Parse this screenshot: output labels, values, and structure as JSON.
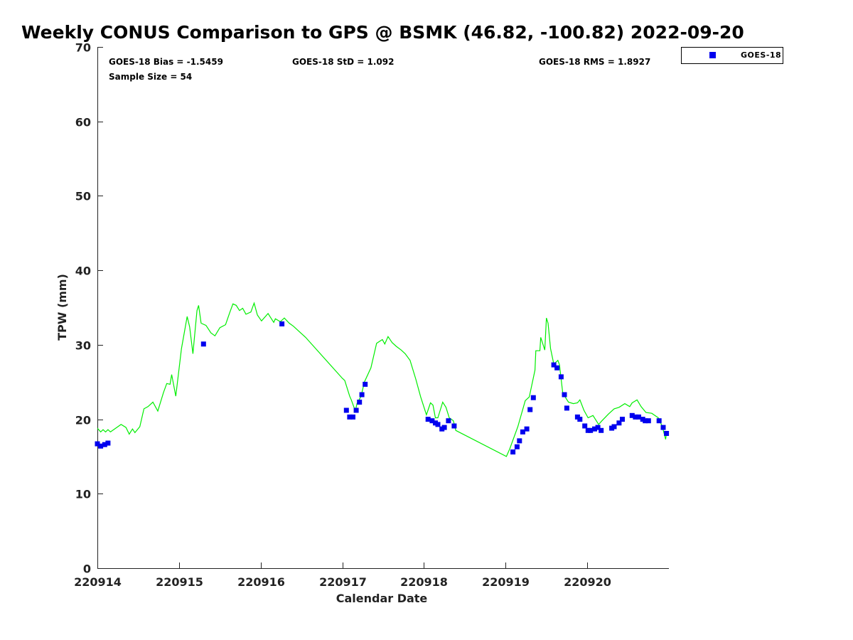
{
  "chart_data": {
    "type": "line",
    "title": "Weekly CONUS Comparison to GPS @ BSMK (46.82, -100.82) 2022-09-20",
    "xlabel": "Calendar Date",
    "ylabel": "TPW (mm)",
    "xlim": [
      14,
      21
    ],
    "ylim": [
      0,
      70
    ],
    "x_unit": "day of September 2022",
    "x_ticks": [
      14,
      15,
      16,
      17,
      18,
      19,
      20
    ],
    "x_tick_labels": [
      "220914",
      "220915",
      "220916",
      "220917",
      "220918",
      "220919",
      "220920"
    ],
    "y_ticks": [
      0,
      10,
      20,
      30,
      40,
      50,
      60,
      70
    ],
    "y_tick_labels": [
      "0",
      "10",
      "20",
      "30",
      "40",
      "50",
      "60",
      "70"
    ],
    "grid": false,
    "legend": {
      "placement": "outside-top-right",
      "entries": [
        "GOES-18"
      ]
    },
    "stats": {
      "bias": "GOES-18 Bias = -1.5459",
      "std": "GOES-18 StD = 1.092",
      "rms": "GOES-18 RMS = 1.8927",
      "sample": "Sample Size = 54"
    },
    "series": [
      {
        "name": "GPS",
        "kind": "line",
        "color": "#00ee00",
        "points": [
          [
            14.0,
            18.8
          ],
          [
            14.04,
            18.3
          ],
          [
            14.07,
            18.6
          ],
          [
            14.1,
            18.3
          ],
          [
            14.13,
            18.6
          ],
          [
            14.16,
            18.3
          ],
          [
            14.29,
            19.3
          ],
          [
            14.35,
            18.9
          ],
          [
            14.39,
            18.0
          ],
          [
            14.43,
            18.7
          ],
          [
            14.46,
            18.2
          ],
          [
            14.52,
            19.0
          ],
          [
            14.57,
            21.4
          ],
          [
            14.62,
            21.7
          ],
          [
            14.68,
            22.3
          ],
          [
            14.74,
            21.1
          ],
          [
            14.81,
            23.6
          ],
          [
            14.85,
            24.8
          ],
          [
            14.89,
            24.7
          ],
          [
            14.91,
            26.0
          ],
          [
            14.96,
            23.1
          ],
          [
            15.03,
            29.5
          ],
          [
            15.1,
            33.8
          ],
          [
            15.13,
            32.4
          ],
          [
            15.17,
            28.8
          ],
          [
            15.22,
            34.6
          ],
          [
            15.24,
            35.3
          ],
          [
            15.27,
            32.9
          ],
          [
            15.33,
            32.6
          ],
          [
            15.39,
            31.6
          ],
          [
            15.44,
            31.2
          ],
          [
            15.5,
            32.3
          ],
          [
            15.57,
            32.7
          ],
          [
            15.62,
            34.3
          ],
          [
            15.66,
            35.5
          ],
          [
            15.7,
            35.3
          ],
          [
            15.74,
            34.6
          ],
          [
            15.78,
            34.9
          ],
          [
            15.82,
            34.1
          ],
          [
            15.88,
            34.4
          ],
          [
            15.92,
            35.6
          ],
          [
            15.96,
            34.0
          ],
          [
            16.01,
            33.2
          ],
          [
            16.09,
            34.2
          ],
          [
            16.16,
            33.0
          ],
          [
            16.18,
            33.5
          ],
          [
            16.24,
            33.1
          ],
          [
            16.29,
            33.6
          ],
          [
            16.35,
            32.9
          ],
          [
            16.4,
            32.5
          ],
          [
            16.55,
            31.0
          ],
          [
            17.0,
            25.5
          ],
          [
            17.03,
            25.2
          ],
          [
            17.09,
            23.1
          ],
          [
            17.11,
            22.6
          ],
          [
            17.16,
            21.1
          ],
          [
            17.18,
            22.1
          ],
          [
            17.23,
            23.1
          ],
          [
            17.27,
            25.0
          ],
          [
            17.35,
            26.9
          ],
          [
            17.42,
            30.2
          ],
          [
            17.49,
            30.7
          ],
          [
            17.52,
            30.1
          ],
          [
            17.56,
            31.1
          ],
          [
            17.61,
            30.3
          ],
          [
            17.66,
            29.8
          ],
          [
            17.72,
            29.3
          ],
          [
            17.77,
            28.8
          ],
          [
            17.83,
            27.9
          ],
          [
            17.9,
            25.4
          ],
          [
            17.96,
            23.0
          ],
          [
            18.03,
            20.6
          ],
          [
            18.08,
            22.2
          ],
          [
            18.11,
            21.9
          ],
          [
            18.14,
            20.2
          ],
          [
            18.17,
            20.2
          ],
          [
            18.23,
            22.3
          ],
          [
            18.27,
            21.6
          ],
          [
            18.31,
            20.2
          ],
          [
            18.36,
            19.8
          ],
          [
            18.39,
            18.5
          ],
          [
            19.01,
            15.0
          ],
          [
            19.05,
            16.0
          ],
          [
            19.15,
            19.0
          ],
          [
            19.24,
            22.5
          ],
          [
            19.29,
            23.0
          ],
          [
            19.36,
            26.6
          ],
          [
            19.37,
            29.2
          ],
          [
            19.42,
            29.2
          ],
          [
            19.43,
            31.0
          ],
          [
            19.48,
            29.3
          ],
          [
            19.5,
            33.6
          ],
          [
            19.52,
            32.9
          ],
          [
            19.55,
            29.5
          ],
          [
            19.59,
            27.4
          ],
          [
            19.64,
            27.9
          ],
          [
            19.66,
            27.3
          ],
          [
            19.7,
            23.5
          ],
          [
            19.77,
            22.3
          ],
          [
            19.83,
            22.1
          ],
          [
            19.88,
            22.2
          ],
          [
            19.91,
            22.6
          ],
          [
            19.96,
            21.2
          ],
          [
            20.01,
            20.2
          ],
          [
            20.07,
            20.5
          ],
          [
            20.14,
            19.3
          ],
          [
            20.18,
            19.8
          ],
          [
            20.26,
            20.7
          ],
          [
            20.33,
            21.4
          ],
          [
            20.39,
            21.6
          ],
          [
            20.46,
            22.1
          ],
          [
            20.52,
            21.7
          ],
          [
            20.55,
            22.2
          ],
          [
            20.61,
            22.6
          ],
          [
            20.66,
            21.7
          ],
          [
            20.72,
            20.9
          ],
          [
            20.79,
            20.8
          ],
          [
            20.87,
            20.2
          ],
          [
            20.92,
            19.0
          ],
          [
            20.96,
            17.3
          ],
          [
            20.97,
            18.1
          ]
        ]
      },
      {
        "name": "GOES-18",
        "kind": "scatter",
        "color": "#0000ee",
        "points": [
          [
            14.0,
            16.7
          ],
          [
            14.04,
            16.4
          ],
          [
            14.09,
            16.6
          ],
          [
            14.13,
            16.8
          ],
          [
            15.3,
            30.1
          ],
          [
            16.26,
            32.8
          ],
          [
            17.05,
            21.2
          ],
          [
            17.09,
            20.3
          ],
          [
            17.13,
            20.3
          ],
          [
            17.17,
            21.2
          ],
          [
            17.21,
            22.3
          ],
          [
            17.24,
            23.3
          ],
          [
            17.28,
            24.7
          ],
          [
            18.05,
            20.0
          ],
          [
            18.1,
            19.8
          ],
          [
            18.14,
            19.5
          ],
          [
            18.17,
            19.3
          ],
          [
            18.22,
            18.7
          ],
          [
            18.25,
            18.9
          ],
          [
            18.3,
            19.8
          ],
          [
            18.37,
            19.1
          ],
          [
            19.09,
            15.6
          ],
          [
            19.14,
            16.3
          ],
          [
            19.17,
            17.1
          ],
          [
            19.21,
            18.3
          ],
          [
            19.26,
            18.7
          ],
          [
            19.3,
            21.3
          ],
          [
            19.34,
            22.9
          ],
          [
            19.59,
            27.3
          ],
          [
            19.63,
            26.9
          ],
          [
            19.68,
            25.7
          ],
          [
            19.72,
            23.3
          ],
          [
            19.75,
            21.5
          ],
          [
            19.88,
            20.3
          ],
          [
            19.91,
            20.0
          ],
          [
            19.97,
            19.1
          ],
          [
            20.01,
            18.5
          ],
          [
            20.04,
            18.5
          ],
          [
            20.09,
            18.7
          ],
          [
            20.13,
            18.9
          ],
          [
            20.17,
            18.5
          ],
          [
            20.3,
            18.8
          ],
          [
            20.33,
            19.0
          ],
          [
            20.39,
            19.5
          ],
          [
            20.43,
            20.0
          ],
          [
            20.55,
            20.5
          ],
          [
            20.59,
            20.3
          ],
          [
            20.63,
            20.3
          ],
          [
            20.68,
            20.0
          ],
          [
            20.71,
            19.8
          ],
          [
            20.75,
            19.8
          ],
          [
            20.88,
            19.8
          ],
          [
            20.93,
            18.9
          ],
          [
            20.97,
            18.1
          ]
        ]
      }
    ]
  }
}
